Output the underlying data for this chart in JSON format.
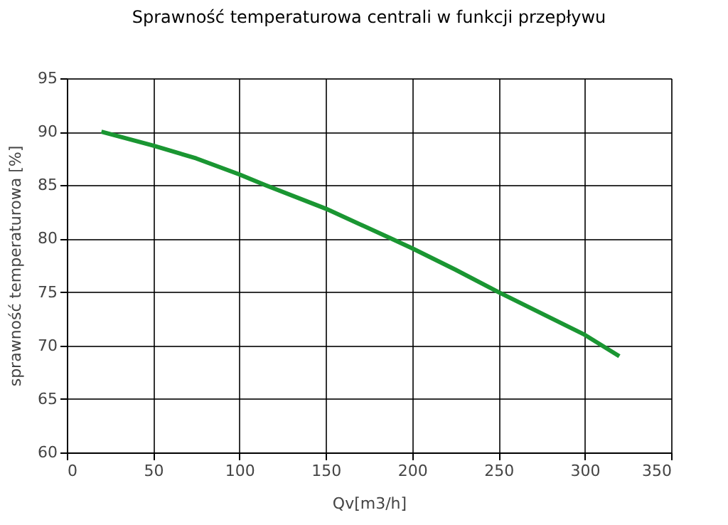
{
  "chart_data": {
    "type": "line",
    "title": "Sprawność temperaturowa centrali w funkcji przepływu",
    "xlabel": "Qv[m3/h]",
    "ylabel": "sprawność temperaturowa [%]",
    "x": [
      20,
      50,
      75,
      100,
      115,
      150,
      188,
      200,
      225,
      250,
      275,
      300,
      320
    ],
    "series": [
      {
        "color": "#1a9632",
        "values": [
          90,
          88.7,
          87.5,
          86,
          85,
          82.8,
          80,
          79.1,
          77.1,
          75,
          73,
          71,
          69
        ]
      }
    ],
    "xlim": [
      0,
      350
    ],
    "xticks": [
      0,
      50,
      100,
      150,
      200,
      250,
      300,
      350
    ],
    "ylim": [
      60,
      95
    ],
    "yticks": [
      60,
      65,
      70,
      75,
      80,
      85,
      90,
      95
    ],
    "grid": true,
    "marker": "none",
    "line_style": "solid"
  }
}
